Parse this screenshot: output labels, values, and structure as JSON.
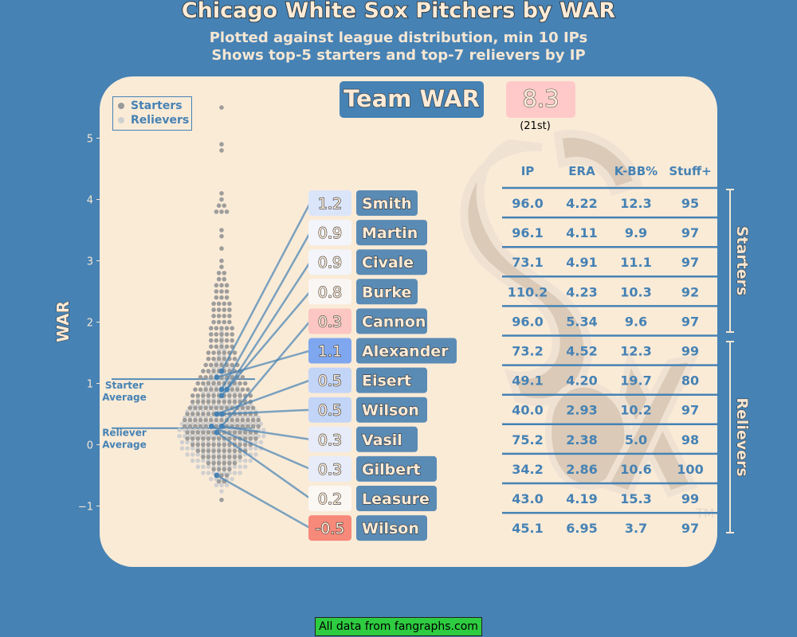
{
  "title": "Chicago White Sox Pitchers by WAR",
  "subtitle_line1": "Plotted against league distribution, min 10 IPs",
  "subtitle_line2": "Shows top-5 starters and top-7 relievers by IP",
  "team_war": {
    "label": "Team WAR",
    "value": "8.3",
    "rank": "(21st)"
  },
  "footer": "All data from fangraphs.com",
  "legend": {
    "starters": "Starters",
    "relievers": "Relievers"
  },
  "colors": {
    "background": "#4682b4",
    "panel": "#faebd7",
    "starter_dot": "#999999",
    "reliever_dot": "#cfcfcf",
    "highlight_dot": "#4682b4",
    "name_box": "#5a8bb5",
    "war_high": "#6e9cf0",
    "war_low": "#f7897a"
  },
  "logo": {
    "name": "white-sox-sox-logo"
  },
  "chart_data": {
    "type": "scatter",
    "ylabel": "WAR",
    "ylim": [
      -1.2,
      5.6
    ],
    "yticks": [
      "5",
      "4",
      "3",
      "2",
      "1",
      "0",
      "−1"
    ],
    "yticks_values": [
      5,
      4,
      3,
      2,
      1,
      0,
      -1
    ],
    "starter_average": {
      "label_line1": "Starter",
      "label_line2": "Average",
      "value": 1.07
    },
    "reliever_average": {
      "label_line1": "Reliever",
      "label_line2": "Average",
      "value": 0.27
    },
    "league_distribution": {
      "bin_width": 0.1,
      "starters": [
        {
          "war": -0.9,
          "count": 1
        },
        {
          "war": -0.6,
          "count": 2
        },
        {
          "war": -0.5,
          "count": 3
        },
        {
          "war": -0.4,
          "count": 4
        },
        {
          "war": -0.3,
          "count": 6
        },
        {
          "war": -0.2,
          "count": 8
        },
        {
          "war": -0.1,
          "count": 10
        },
        {
          "war": 0.0,
          "count": 12
        },
        {
          "war": 0.1,
          "count": 14
        },
        {
          "war": 0.2,
          "count": 14
        },
        {
          "war": 0.3,
          "count": 15
        },
        {
          "war": 0.4,
          "count": 15
        },
        {
          "war": 0.5,
          "count": 14
        },
        {
          "war": 0.6,
          "count": 13
        },
        {
          "war": 0.7,
          "count": 12
        },
        {
          "war": 0.8,
          "count": 12
        },
        {
          "war": 0.9,
          "count": 11
        },
        {
          "war": 1.0,
          "count": 10
        },
        {
          "war": 1.1,
          "count": 9
        },
        {
          "war": 1.2,
          "count": 8
        },
        {
          "war": 1.3,
          "count": 7
        },
        {
          "war": 1.4,
          "count": 6
        },
        {
          "war": 1.5,
          "count": 6
        },
        {
          "war": 1.6,
          "count": 5
        },
        {
          "war": 1.7,
          "count": 5
        },
        {
          "war": 1.8,
          "count": 5
        },
        {
          "war": 1.9,
          "count": 5
        },
        {
          "war": 2.0,
          "count": 4
        },
        {
          "war": 2.1,
          "count": 4
        },
        {
          "war": 2.2,
          "count": 4
        },
        {
          "war": 2.3,
          "count": 4
        },
        {
          "war": 2.4,
          "count": 3
        },
        {
          "war": 2.5,
          "count": 3
        },
        {
          "war": 2.6,
          "count": 3
        },
        {
          "war": 2.7,
          "count": 2
        },
        {
          "war": 2.8,
          "count": 2
        },
        {
          "war": 2.9,
          "count": 1
        },
        {
          "war": 3.0,
          "count": 1
        },
        {
          "war": 3.2,
          "count": 1
        },
        {
          "war": 3.4,
          "count": 1
        },
        {
          "war": 3.5,
          "count": 1
        },
        {
          "war": 3.8,
          "count": 3
        },
        {
          "war": 3.9,
          "count": 2
        },
        {
          "war": 4.0,
          "count": 1
        },
        {
          "war": 4.1,
          "count": 1
        },
        {
          "war": 4.8,
          "count": 1
        },
        {
          "war": 4.9,
          "count": 1
        },
        {
          "war": 5.5,
          "count": 1
        }
      ],
      "relievers": [
        {
          "war": -0.8,
          "count": 1
        },
        {
          "war": -0.7,
          "count": 3
        },
        {
          "war": -0.6,
          "count": 5
        },
        {
          "war": -0.5,
          "count": 8
        },
        {
          "war": -0.4,
          "count": 10
        },
        {
          "war": -0.3,
          "count": 12
        },
        {
          "war": -0.2,
          "count": 14
        },
        {
          "war": -0.1,
          "count": 16
        },
        {
          "war": 0.0,
          "count": 16
        },
        {
          "war": 0.1,
          "count": 17
        },
        {
          "war": 0.2,
          "count": 17
        },
        {
          "war": 0.3,
          "count": 16
        },
        {
          "war": 0.4,
          "count": 15
        },
        {
          "war": 0.5,
          "count": 14
        },
        {
          "war": 0.6,
          "count": 12
        },
        {
          "war": 0.7,
          "count": 10
        },
        {
          "war": 0.8,
          "count": 8
        },
        {
          "war": 0.9,
          "count": 7
        },
        {
          "war": 1.0,
          "count": 6
        },
        {
          "war": 1.1,
          "count": 5
        },
        {
          "war": 1.2,
          "count": 4
        },
        {
          "war": 1.3,
          "count": 3
        },
        {
          "war": 1.4,
          "count": 2
        },
        {
          "war": 1.5,
          "count": 2
        },
        {
          "war": 1.6,
          "count": 1
        },
        {
          "war": 1.7,
          "count": 1
        },
        {
          "war": 1.8,
          "count": 1
        }
      ]
    },
    "table_headers": [
      "IP",
      "ERA",
      "K-BB%",
      "Stuff+"
    ],
    "group_labels": {
      "starters": "Starters",
      "relievers": "Relievers"
    },
    "pitchers": [
      {
        "name": "Smith",
        "role": "starter",
        "war": 1.2,
        "war_label": "1.2",
        "war_color": "#dbe5fa",
        "ip": "96.0",
        "era": "4.22",
        "kbb": "12.3",
        "stuff": "95"
      },
      {
        "name": "Martin",
        "role": "starter",
        "war": 0.9,
        "war_label": "0.9",
        "war_color": "#f3f5fb",
        "ip": "96.1",
        "era": "4.11",
        "kbb": "9.9",
        "stuff": "97"
      },
      {
        "name": "Civale",
        "role": "starter",
        "war": 0.9,
        "war_label": "0.9",
        "war_color": "#f3f5fb",
        "ip": "73.1",
        "era": "4.91",
        "kbb": "11.1",
        "stuff": "97"
      },
      {
        "name": "Burke",
        "role": "starter",
        "war": 0.8,
        "war_label": "0.8",
        "war_color": "#faf6f4",
        "ip": "110.2",
        "era": "4.23",
        "kbb": "10.3",
        "stuff": "92"
      },
      {
        "name": "Cannon",
        "role": "starter",
        "war": 0.3,
        "war_label": "0.3",
        "war_color": "#fcc6c2",
        "ip": "96.0",
        "era": "5.34",
        "kbb": "9.6",
        "stuff": "97"
      },
      {
        "name": "Alexander",
        "role": "reliever",
        "war": 1.1,
        "war_label": "1.1",
        "war_color": "#7fa7f0",
        "ip": "73.2",
        "era": "4.52",
        "kbb": "12.3",
        "stuff": "99"
      },
      {
        "name": "Eisert",
        "role": "reliever",
        "war": 0.5,
        "war_label": "0.5",
        "war_color": "#c3d5f7",
        "ip": "49.1",
        "era": "4.20",
        "kbb": "19.7",
        "stuff": "80"
      },
      {
        "name": "Wilson",
        "role": "reliever",
        "war": 0.5,
        "war_label": "0.5",
        "war_color": "#c3d5f7",
        "ip": "40.0",
        "era": "2.93",
        "kbb": "10.2",
        "stuff": "97"
      },
      {
        "name": "Vasil",
        "role": "reliever",
        "war": 0.3,
        "war_label": "0.3",
        "war_color": "#e7ecf8",
        "ip": "75.2",
        "era": "2.38",
        "kbb": "5.0",
        "stuff": "98"
      },
      {
        "name": "Gilbert",
        "role": "reliever",
        "war": 0.3,
        "war_label": "0.3",
        "war_color": "#e7ecf8",
        "ip": "34.2",
        "era": "2.86",
        "kbb": "10.6",
        "stuff": "100"
      },
      {
        "name": "Leasure",
        "role": "reliever",
        "war": 0.2,
        "war_label": "0.2",
        "war_color": "#fbf7f3",
        "ip": "43.0",
        "era": "4.19",
        "kbb": "15.3",
        "stuff": "99"
      },
      {
        "name": "Wilson",
        "role": "reliever",
        "war": -0.5,
        "war_label": "-0.5",
        "war_color": "#f7897a",
        "ip": "45.1",
        "era": "6.95",
        "kbb": "3.7",
        "stuff": "97"
      }
    ]
  }
}
